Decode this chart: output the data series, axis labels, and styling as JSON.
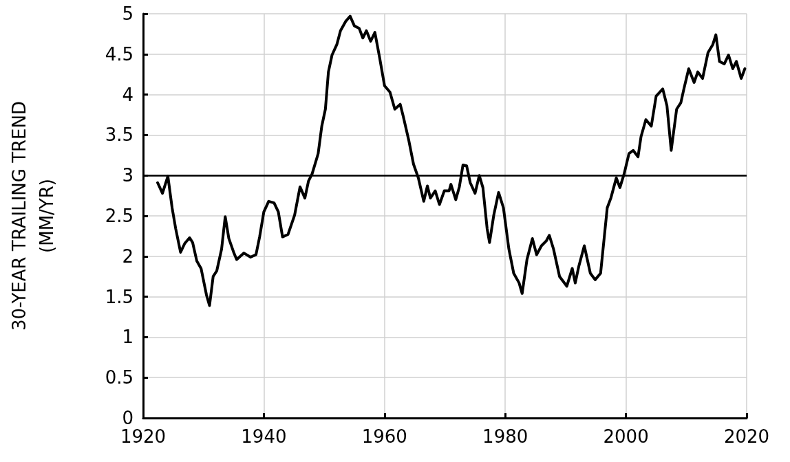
{
  "chart_data": {
    "type": "line",
    "ylabel": "30-YEAR TRAILING TREND\n(MM/YR)",
    "xlim": [
      1920,
      2020
    ],
    "xticks": [
      1920,
      1940,
      1960,
      1980,
      2000,
      2020
    ],
    "ylim": [
      0,
      5
    ],
    "yticks": [
      0,
      0.5,
      1,
      1.5,
      2,
      2.5,
      3,
      3.5,
      4,
      4.5,
      5
    ],
    "grid": true,
    "marker": "none",
    "line_style": "solid",
    "ref_lines": [
      {
        "axis": "y",
        "value": 3,
        "color": "#000000"
      }
    ],
    "series": [
      {
        "color": "#000000",
        "x": [
          1922.4,
          1923.2,
          1924.1,
          1924.8,
          1925.4,
          1926.2,
          1926.9,
          1927.7,
          1928.2,
          1928.9,
          1929.6,
          1930.5,
          1931,
          1931.6,
          1932.2,
          1933,
          1933.6,
          1934.2,
          1935,
          1935.5,
          1936.7,
          1937.8,
          1938.7,
          1939.3,
          1940,
          1940.8,
          1941.7,
          1942.4,
          1943.1,
          1944,
          1945.1,
          1946,
          1946.8,
          1947.4,
          1948,
          1949,
          1949.6,
          1950.2,
          1950.7,
          1951.3,
          1952.1,
          1952.7,
          1953.6,
          1954.3,
          1955,
          1955.8,
          1956.4,
          1957,
          1957.7,
          1958.4,
          1959.2,
          1960,
          1960.9,
          1961.7,
          1962.6,
          1963.1,
          1964,
          1964.8,
          1965.6,
          1966.5,
          1967.1,
          1967.6,
          1968.4,
          1969.1,
          1969.9,
          1970.7,
          1971,
          1971.8,
          1972.4,
          1973,
          1973.6,
          1974.2,
          1975,
          1975.7,
          1976.3,
          1977,
          1977.4,
          1978.1,
          1978.9,
          1979.7,
          1980.6,
          1981.4,
          1982.3,
          1982.8,
          1983.6,
          1984.5,
          1985.2,
          1986,
          1986.8,
          1987.3,
          1988,
          1989,
          1990.2,
          1991.1,
          1991.6,
          1992.2,
          1993.1,
          1994.1,
          1994.9,
          1995.8,
          1996.9,
          1997.5,
          1998.4,
          1999,
          1999.7,
          2000.5,
          2001.2,
          2002,
          2002.5,
          2003.3,
          2004.2,
          2005,
          2006.1,
          2006.8,
          2007.5,
          2008.4,
          2009.1,
          2009.6,
          2010.4,
          2011.3,
          2011.9,
          2012.7,
          2013.6,
          2014.4,
          2014.9,
          2015.5,
          2016.3,
          2017,
          2017.7,
          2018.3,
          2019.1,
          2019.7
        ],
        "values": [
          2.91,
          2.78,
          2.99,
          2.6,
          2.34,
          2.05,
          2.16,
          2.23,
          2.17,
          1.94,
          1.85,
          1.52,
          1.39,
          1.75,
          1.82,
          2.09,
          2.49,
          2.22,
          2.05,
          1.96,
          2.04,
          1.99,
          2.02,
          2.24,
          2.55,
          2.68,
          2.66,
          2.55,
          2.24,
          2.27,
          2.51,
          2.86,
          2.72,
          2.93,
          3.02,
          3.27,
          3.61,
          3.82,
          4.28,
          4.49,
          4.62,
          4.79,
          4.91,
          4.97,
          4.85,
          4.82,
          4.7,
          4.79,
          4.66,
          4.77,
          4.45,
          4.11,
          4.03,
          3.82,
          3.88,
          3.73,
          3.44,
          3.14,
          2.97,
          2.68,
          2.87,
          2.72,
          2.81,
          2.64,
          2.81,
          2.81,
          2.89,
          2.7,
          2.86,
          3.13,
          3.12,
          2.91,
          2.78,
          3.0,
          2.85,
          2.34,
          2.17,
          2.51,
          2.79,
          2.6,
          2.09,
          1.79,
          1.67,
          1.54,
          1.96,
          2.22,
          2.02,
          2.13,
          2.19,
          2.26,
          2.09,
          1.75,
          1.63,
          1.85,
          1.67,
          1.88,
          2.13,
          1.79,
          1.71,
          1.79,
          2.6,
          2.72,
          2.97,
          2.85,
          3.02,
          3.27,
          3.31,
          3.23,
          3.48,
          3.69,
          3.61,
          3.98,
          4.07,
          3.86,
          3.31,
          3.82,
          3.9,
          4.07,
          4.32,
          4.15,
          4.28,
          4.2,
          4.52,
          4.62,
          4.74,
          4.41,
          4.38,
          4.49,
          4.32,
          4.41,
          4.2,
          4.32
        ]
      }
    ]
  }
}
